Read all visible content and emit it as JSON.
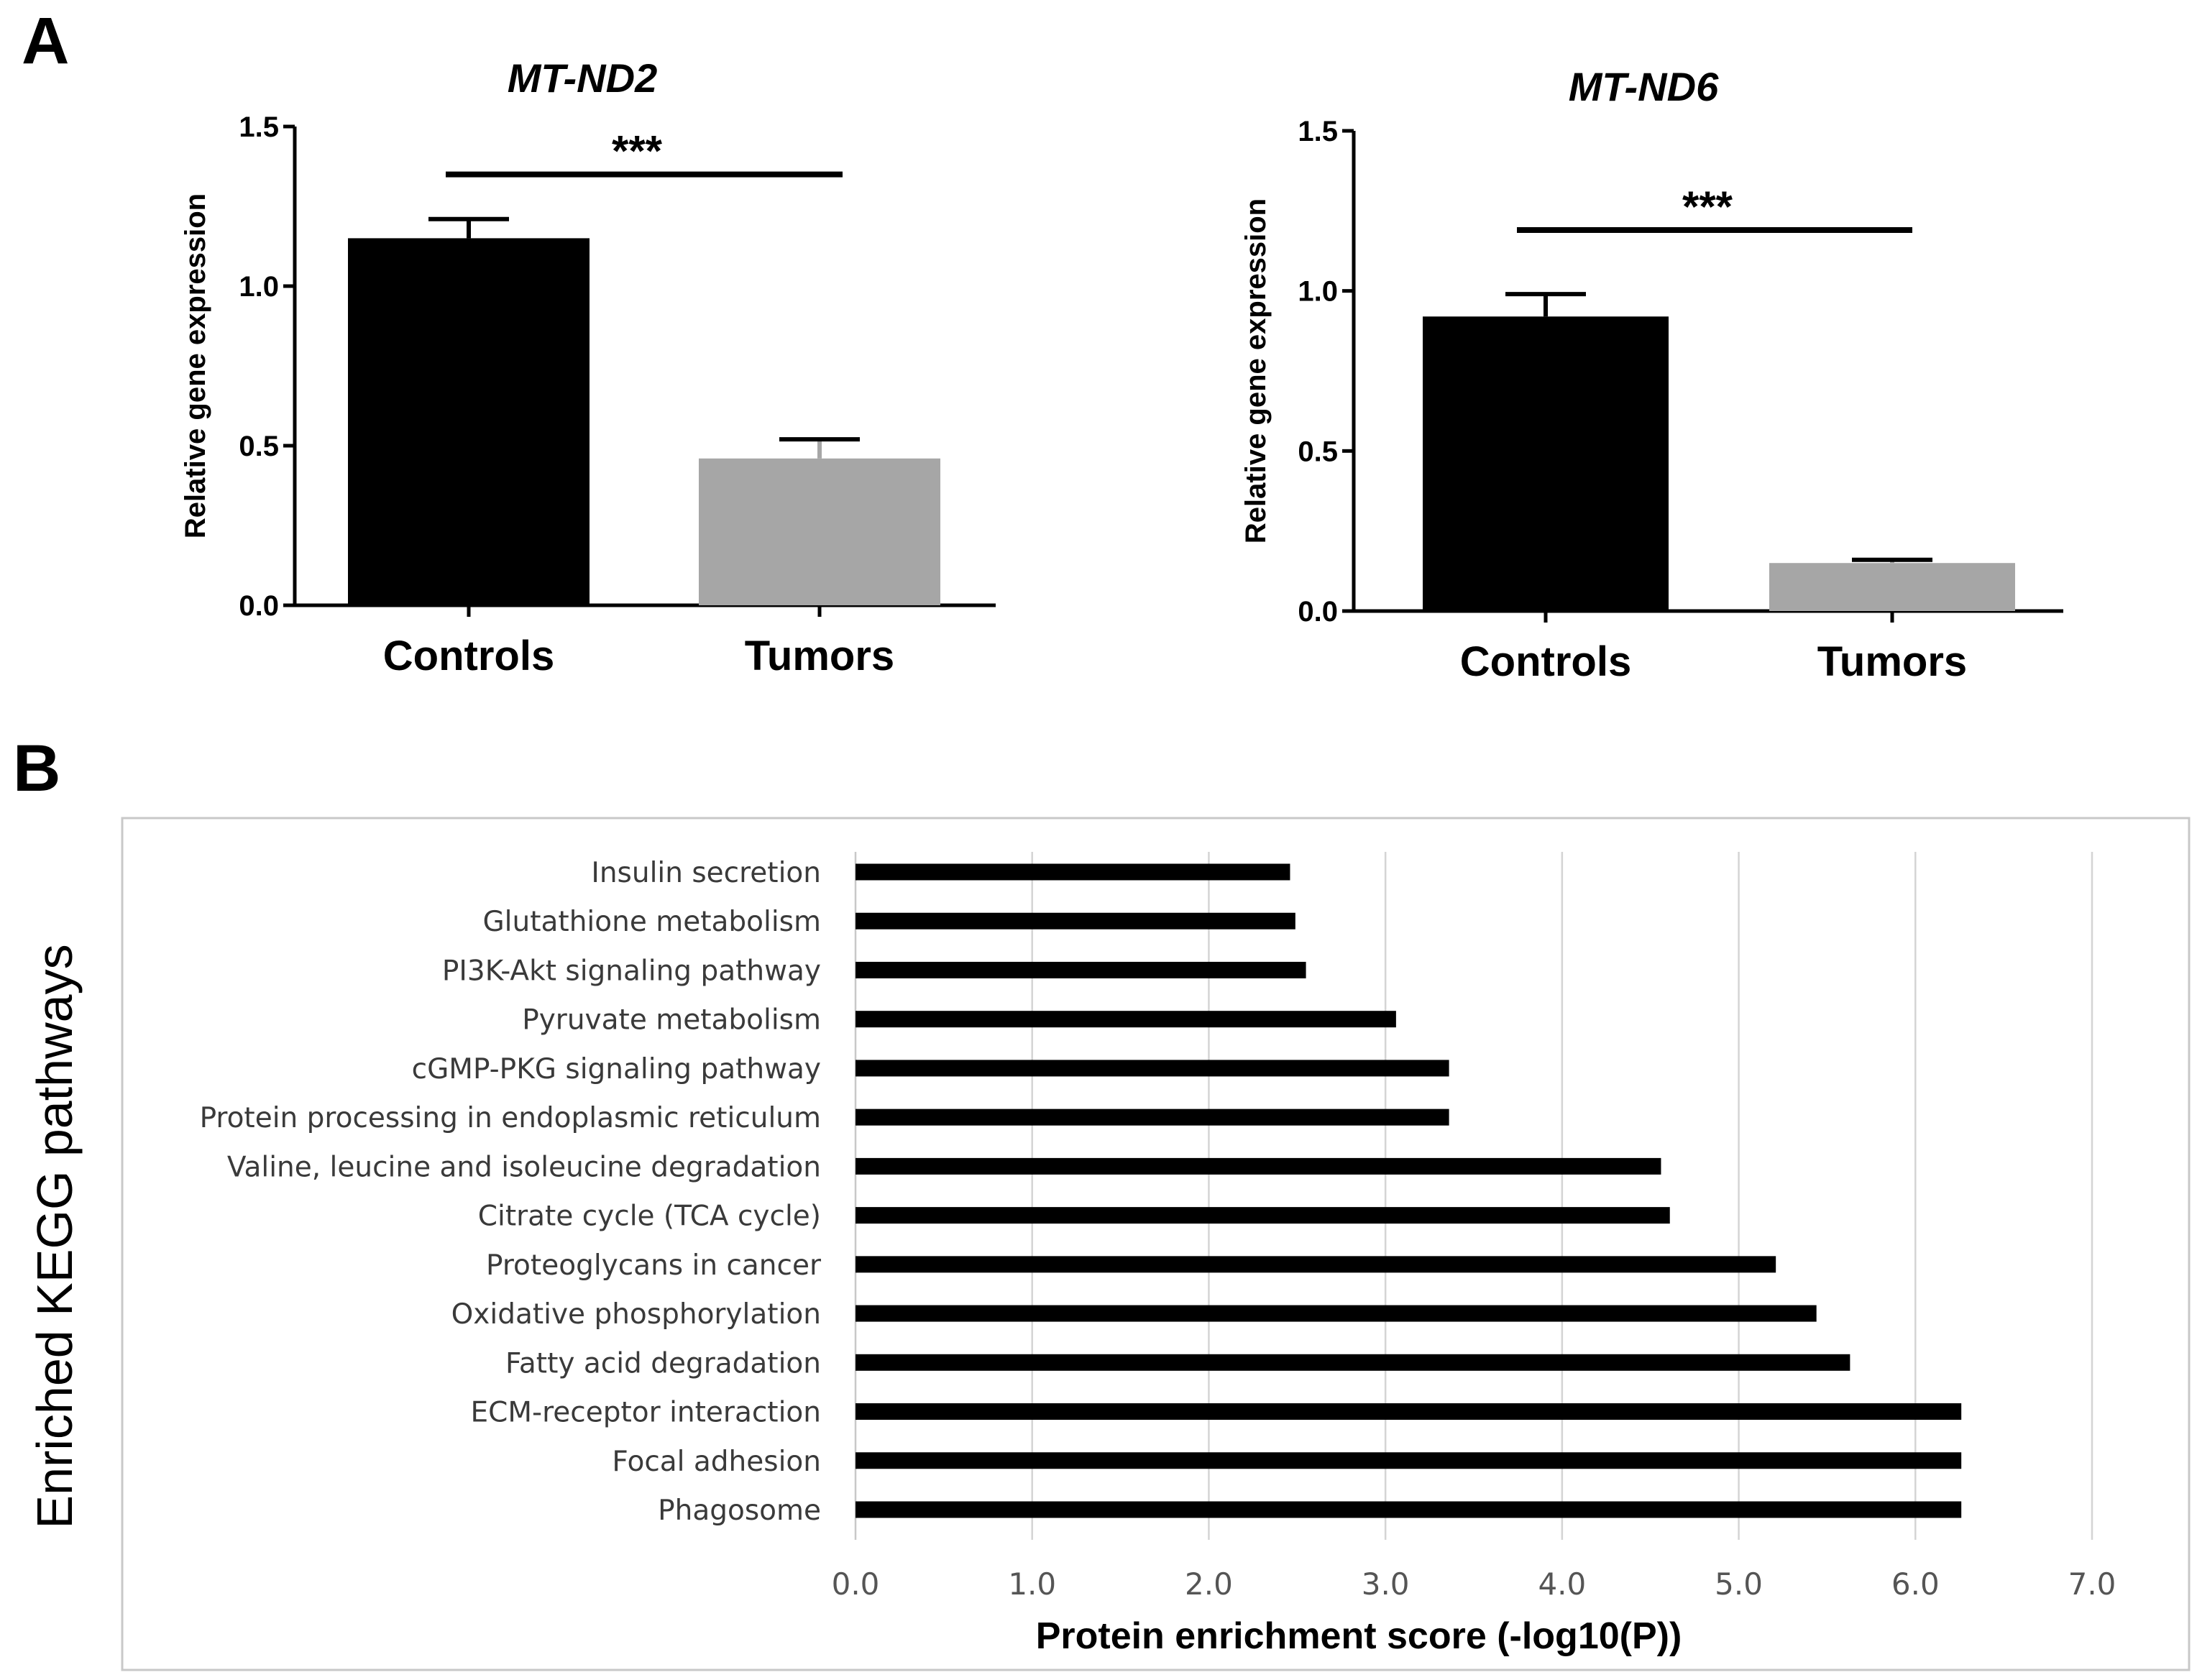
{
  "panel_a_letter": "A",
  "panel_b_letter": "B",
  "chart_data": [
    {
      "type": "bar",
      "panel": "A",
      "title": "MT-ND2",
      "xlabel": "",
      "ylabel": "Relative gene expression",
      "categories": [
        "Controls",
        "Tumors"
      ],
      "values": [
        1.15,
        0.46
      ],
      "errors": [
        0.06,
        0.06
      ],
      "bar_colors": [
        "#000000",
        "#a6a6a6"
      ],
      "ylim": [
        0,
        1.5
      ],
      "yticks": [
        "0.0",
        "0.5",
        "1.0",
        "1.5"
      ],
      "significance": "***",
      "significance_level": 1.35
    },
    {
      "type": "bar",
      "panel": "A",
      "title": "MT-ND6",
      "xlabel": "",
      "ylabel": "Relative gene expression",
      "categories": [
        "Controls",
        "Tumors"
      ],
      "values": [
        0.92,
        0.15
      ],
      "errors": [
        0.07,
        0.01
      ],
      "bar_colors": [
        "#000000",
        "#a6a6a6"
      ],
      "ylim": [
        0,
        1.5
      ],
      "yticks": [
        "0.0",
        "0.5",
        "1.0",
        "1.5"
      ],
      "significance": "***",
      "significance_level": 1.19
    },
    {
      "type": "bar",
      "panel": "B",
      "orientation": "horizontal",
      "title": "",
      "xlabel": "Protein enrichment score (-log10(P))",
      "ylabel": "Enriched KEGG pathways",
      "categories": [
        "Insulin secretion",
        "Glutathione metabolism",
        "PI3K-Akt signaling pathway",
        "Pyruvate metabolism",
        "cGMP-PKG signaling pathway",
        "Protein processing in endoplasmic reticulum",
        "Valine, leucine and isoleucine degradation",
        "Citrate cycle (TCA cycle)",
        "Proteoglycans in cancer",
        "Oxidative phosphorylation",
        "Fatty acid degradation",
        "ECM-receptor interaction",
        "Focal adhesion",
        "Phagosome"
      ],
      "values": [
        2.46,
        2.49,
        2.55,
        3.06,
        3.36,
        3.36,
        4.56,
        4.61,
        5.21,
        5.44,
        5.63,
        6.26,
        6.26,
        6.26
      ],
      "xlim": [
        0,
        7
      ],
      "xticks": [
        "0.0",
        "1.0",
        "2.0",
        "3.0",
        "4.0",
        "5.0",
        "6.0",
        "7.0"
      ],
      "bar_color": "#000000",
      "grid": "vertical"
    }
  ]
}
